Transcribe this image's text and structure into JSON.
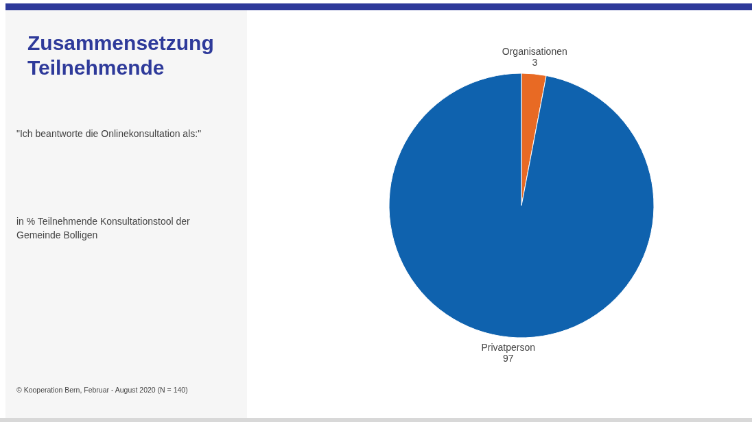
{
  "chart_data": {
    "type": "pie",
    "title": "Zusammensetzung Teilnehmende",
    "subtitle": "\"Ich beantworte die Onlinekonsultation als:\"",
    "annotations": [
      "in % Teilnehmende Konsultationstool der Gemeinde Bolligen",
      "© Kooperation Bern, Februar - August 2020 (N = 140)"
    ],
    "categories": [
      "Organisationen",
      "Privatperson"
    ],
    "values": [
      3,
      97
    ],
    "colors": [
      "#e86a24",
      "#0f62ae"
    ],
    "data_labels": true
  }
}
